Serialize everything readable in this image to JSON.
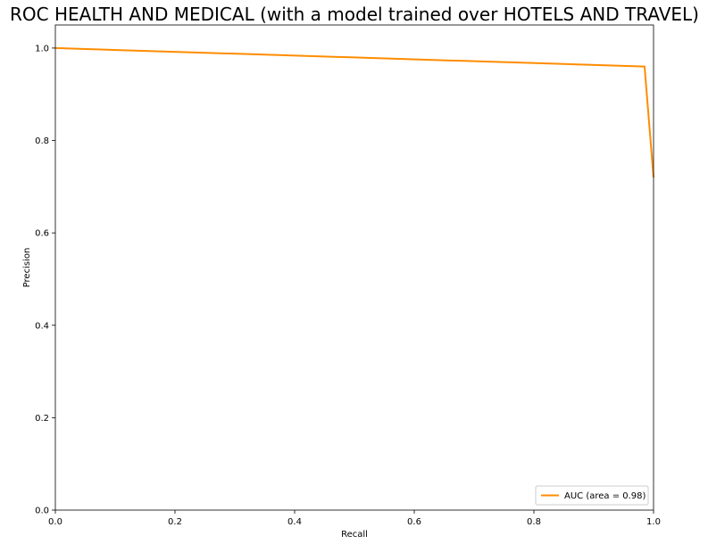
{
  "chart_data": {
    "type": "line",
    "title": "ROC HEALTH AND MEDICAL (with a model trained over HOTELS AND TRAVEL)",
    "xlabel": "Recall",
    "ylabel": "Precision",
    "xlim": [
      0.0,
      1.0
    ],
    "ylim": [
      0.0,
      1.05
    ],
    "xticks": [
      "0.0",
      "0.2",
      "0.4",
      "0.6",
      "0.8",
      "1.0"
    ],
    "yticks": [
      "0.0",
      "0.2",
      "0.4",
      "0.6",
      "0.8",
      "1.0"
    ],
    "grid": false,
    "legend_position": "lower-right",
    "series": [
      {
        "name": "AUC (area = 0.98)",
        "color": "#ff8c00",
        "x": [
          0.0,
          0.985,
          1.0
        ],
        "y": [
          1.0,
          0.96,
          0.72
        ]
      }
    ]
  }
}
